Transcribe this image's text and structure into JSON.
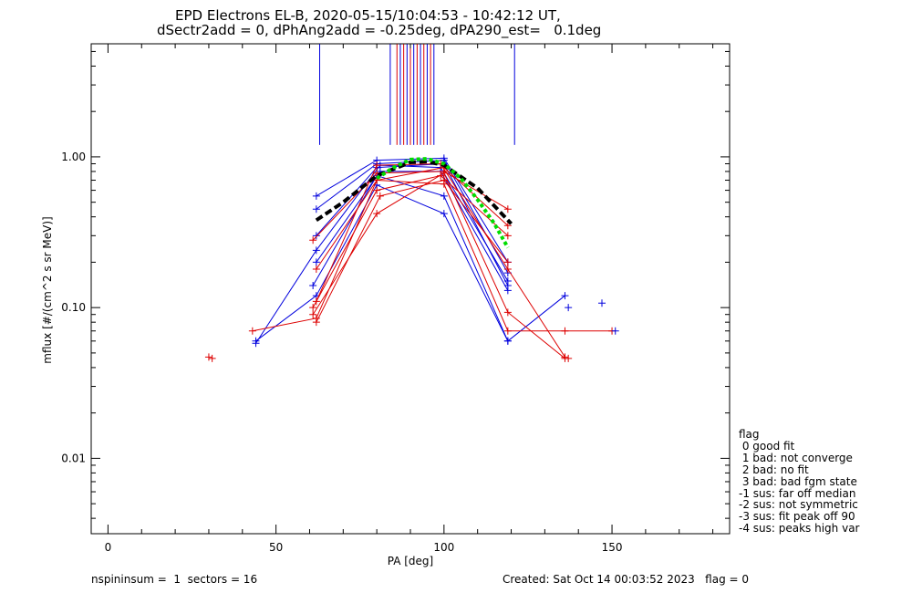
{
  "title_line1": "EPD Electrons EL-B, 2020-05-15/10:04:53 - 10:42:12 UT,",
  "title_line2": "dSectr2add = 0, dPhAng2add = -0.25deg, dPA290_est=   0.1deg",
  "footer": {
    "left": "nspininsum =  1  sectors = 16",
    "right": "Created: Sat Oct 14 00:03:52 2023   flag = 0"
  },
  "legend": {
    "title": "flag",
    "items": [
      " 0 good fit",
      " 1 bad: not converge",
      " 2 bad: no fit",
      " 3 bad: bad fgm state",
      "-1 sus: far off median",
      "-2 sus: not symmetric",
      "-3 sus: fit peak off 90",
      "-4 sus: peaks high var"
    ]
  },
  "chart_data": {
    "type": "line",
    "xlabel": "PA [deg]",
    "ylabel": "mflux [#/(cm^2 s sr MeV)]",
    "xlim": [
      -5,
      185
    ],
    "ylim_log10": [
      -2.5,
      0.75
    ],
    "yscale": "log",
    "xticks": [
      0,
      50,
      100,
      150
    ],
    "xtick_labels": [
      "0",
      "50",
      "100",
      "150"
    ],
    "yticks": [
      0.01,
      0.1,
      1.0
    ],
    "ytick_labels": [
      "0.01",
      "0.10",
      "1.00"
    ],
    "colors": {
      "blue": "#0000dd",
      "red": "#dd0000",
      "green": "#00dd00",
      "black": "#000000"
    },
    "vertical_markers": [
      {
        "x": 63,
        "color": "blue"
      },
      {
        "x": 84,
        "color": "blue"
      },
      {
        "x": 86,
        "color": "red"
      },
      {
        "x": 87,
        "color": "blue"
      },
      {
        "x": 88,
        "color": "red"
      },
      {
        "x": 89,
        "color": "blue"
      },
      {
        "x": 90,
        "color": "red"
      },
      {
        "x": 91,
        "color": "blue"
      },
      {
        "x": 92,
        "color": "red"
      },
      {
        "x": 93,
        "color": "blue"
      },
      {
        "x": 94,
        "color": "red"
      },
      {
        "x": 95,
        "color": "blue"
      },
      {
        "x": 96,
        "color": "red"
      },
      {
        "x": 97,
        "color": "blue"
      },
      {
        "x": 121,
        "color": "blue"
      }
    ],
    "vertical_marker_range": [
      1.2,
      5.6
    ],
    "series": [
      {
        "color": "blue",
        "x": [
          62,
          80,
          100,
          119
        ],
        "y": [
          0.55,
          0.95,
          0.98,
          0.2
        ]
      },
      {
        "color": "blue",
        "x": [
          62,
          80,
          100,
          119
        ],
        "y": [
          0.45,
          0.9,
          0.95,
          0.17
        ]
      },
      {
        "color": "blue",
        "x": [
          62,
          80,
          100,
          119
        ],
        "y": [
          0.3,
          0.85,
          0.9,
          0.14
        ]
      },
      {
        "color": "blue",
        "x": [
          62,
          81,
          99,
          119
        ],
        "y": [
          0.2,
          0.8,
          0.8,
          0.13
        ]
      },
      {
        "color": "blue",
        "x": [
          61,
          80,
          100,
          119
        ],
        "y": [
          0.14,
          0.75,
          0.55,
          0.06
        ]
      },
      {
        "color": "blue",
        "x": [
          44,
          62,
          80,
          100,
          119,
          136
        ],
        "y": [
          0.06,
          0.12,
          0.65,
          0.42,
          0.06,
          0.12
        ]
      },
      {
        "color": "blue",
        "x": [
          44,
          62,
          81,
          99,
          119
        ],
        "y": [
          0.058,
          0.24,
          0.88,
          0.85,
          0.15
        ]
      },
      {
        "color": "red",
        "x": [
          61,
          80,
          100,
          119
        ],
        "y": [
          0.28,
          0.78,
          0.8,
          0.45
        ]
      },
      {
        "color": "red",
        "x": [
          62,
          80,
          100,
          119
        ],
        "y": [
          0.18,
          0.7,
          0.85,
          0.35
        ]
      },
      {
        "color": "red",
        "x": [
          61,
          80,
          99,
          119
        ],
        "y": [
          0.1,
          0.6,
          0.75,
          0.3
        ]
      },
      {
        "color": "red",
        "x": [
          62,
          81,
          100,
          119
        ],
        "y": [
          0.08,
          0.55,
          0.7,
          0.2
        ]
      },
      {
        "color": "red",
        "x": [
          61,
          80,
          100,
          119,
          136
        ],
        "y": [
          0.09,
          0.42,
          0.78,
          0.093,
          0.046
        ]
      },
      {
        "color": "red",
        "x": [
          62,
          80,
          99,
          119,
          136
        ],
        "y": [
          0.11,
          0.88,
          0.9,
          0.18,
          0.047
        ]
      },
      {
        "color": "red",
        "x": [
          43,
          62,
          80,
          100,
          119,
          136,
          150
        ],
        "y": [
          0.07,
          0.085,
          0.7,
          0.66,
          0.07,
          0.07,
          0.07
        ]
      }
    ],
    "isolated_points": [
      {
        "color": "red",
        "x": 30,
        "y": 0.047
      },
      {
        "color": "red",
        "x": 31,
        "y": 0.046
      },
      {
        "color": "blue",
        "x": 137,
        "y": 0.1
      },
      {
        "color": "blue",
        "x": 147,
        "y": 0.107
      },
      {
        "color": "blue",
        "x": 151,
        "y": 0.07
      },
      {
        "color": "red",
        "x": 137,
        "y": 0.046
      }
    ],
    "fits": [
      {
        "color": "black",
        "style": "dashed",
        "x": [
          62,
          70,
          80,
          90,
          95,
          100,
          110,
          120
        ],
        "y": [
          0.38,
          0.5,
          0.75,
          0.92,
          0.93,
          0.88,
          0.62,
          0.36
        ]
      },
      {
        "color": "green",
        "style": "dotted",
        "x": [
          80,
          85,
          90,
          95,
          100,
          105,
          110,
          115,
          119
        ],
        "y": [
          0.72,
          0.85,
          0.96,
          0.97,
          0.9,
          0.72,
          0.52,
          0.36,
          0.25
        ]
      }
    ]
  }
}
